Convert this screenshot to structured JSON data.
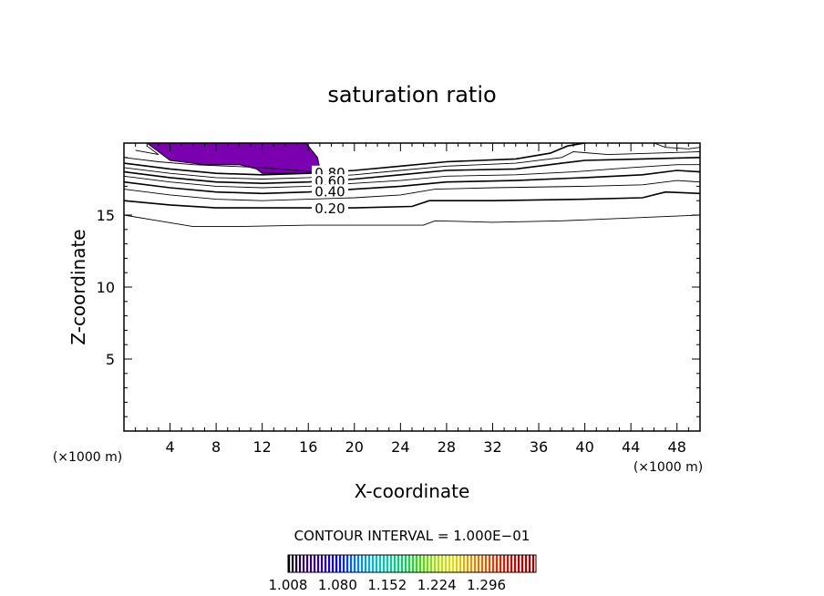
{
  "chart_data": {
    "type": "contour",
    "title": "saturation ratio",
    "xlabel": "X-coordinate",
    "ylabel": "Z-coordinate",
    "x_unit": "(×1000 m)",
    "x_unit_right": "(×1000 m)",
    "xlim": [
      0,
      50
    ],
    "ylim": [
      0,
      20
    ],
    "x_ticks": [
      "4",
      "8",
      "12",
      "16",
      "20",
      "24",
      "28",
      "32",
      "36",
      "40",
      "44",
      "48"
    ],
    "y_ticks": [
      "5",
      "10",
      "15"
    ],
    "contour_interval_text": "CONTOUR INTERVAL = 1.000E−01",
    "contour_labels": [
      "0.80",
      "0.60",
      "0.40",
      "0.20"
    ],
    "contour_lines": [
      {
        "level": 0.1,
        "points": [
          [
            0,
            15.0
          ],
          [
            3,
            14.6
          ],
          [
            6,
            14.2
          ],
          [
            10,
            14.2
          ],
          [
            16,
            14.3
          ],
          [
            22,
            14.3
          ],
          [
            26,
            14.3
          ],
          [
            27,
            14.6
          ],
          [
            32,
            14.5
          ],
          [
            38,
            14.6
          ],
          [
            44,
            14.8
          ],
          [
            50,
            15.0
          ]
        ]
      },
      {
        "level": 0.2,
        "labeled": true,
        "points": [
          [
            0,
            16.0
          ],
          [
            4,
            15.7
          ],
          [
            8,
            15.5
          ],
          [
            12,
            15.5
          ],
          [
            16,
            15.5
          ],
          [
            20,
            15.5
          ],
          [
            25,
            15.6
          ],
          [
            26.5,
            16.0
          ],
          [
            32,
            16.0
          ],
          [
            40,
            16.1
          ],
          [
            45,
            16.2
          ],
          [
            47,
            16.6
          ],
          [
            50,
            16.5
          ]
        ]
      },
      {
        "level": 0.3,
        "points": [
          [
            0,
            16.8
          ],
          [
            4,
            16.4
          ],
          [
            8,
            16.1
          ],
          [
            12,
            16.0
          ],
          [
            16,
            16.1
          ],
          [
            20,
            16.2
          ],
          [
            24,
            16.4
          ],
          [
            27,
            16.8
          ],
          [
            32,
            16.9
          ],
          [
            40,
            17.0
          ],
          [
            45,
            17.1
          ],
          [
            48,
            17.4
          ],
          [
            50,
            17.3
          ]
        ]
      },
      {
        "level": 0.4,
        "labeled": true,
        "points": [
          [
            0,
            17.3
          ],
          [
            4,
            16.9
          ],
          [
            8,
            16.6
          ],
          [
            12,
            16.5
          ],
          [
            16,
            16.6
          ],
          [
            20,
            16.8
          ],
          [
            24,
            17.0
          ],
          [
            28,
            17.3
          ],
          [
            34,
            17.4
          ],
          [
            40,
            17.6
          ],
          [
            45,
            17.8
          ],
          [
            48,
            18.1
          ],
          [
            50,
            18.0
          ]
        ]
      },
      {
        "level": 0.5,
        "points": [
          [
            0,
            17.7
          ],
          [
            4,
            17.3
          ],
          [
            8,
            17.0
          ],
          [
            12,
            16.9
          ],
          [
            16,
            17.0
          ],
          [
            20,
            17.2
          ],
          [
            24,
            17.4
          ],
          [
            28,
            17.7
          ],
          [
            34,
            17.8
          ],
          [
            39,
            18.0
          ],
          [
            44,
            18.3
          ],
          [
            48,
            18.5
          ],
          [
            50,
            18.5
          ]
        ]
      },
      {
        "level": 0.6,
        "labeled": true,
        "points": [
          [
            0,
            18.0
          ],
          [
            4,
            17.6
          ],
          [
            8,
            17.3
          ],
          [
            12,
            17.2
          ],
          [
            16,
            17.3
          ],
          [
            20,
            17.5
          ],
          [
            24,
            17.8
          ],
          [
            28,
            18.1
          ],
          [
            34,
            18.2
          ],
          [
            38,
            18.6
          ],
          [
            40,
            18.8
          ],
          [
            45,
            18.9
          ],
          [
            50,
            19.0
          ]
        ]
      },
      {
        "level": 0.7,
        "points": [
          [
            0,
            18.3
          ],
          [
            4,
            17.9
          ],
          [
            8,
            17.6
          ],
          [
            12,
            17.5
          ],
          [
            16,
            17.6
          ],
          [
            20,
            17.8
          ],
          [
            24,
            18.1
          ],
          [
            28,
            18.4
          ],
          [
            34,
            18.6
          ],
          [
            38,
            19.0
          ],
          [
            39,
            19.4
          ],
          [
            42,
            19.2
          ],
          [
            46,
            19.3
          ],
          [
            50,
            19.4
          ]
        ]
      },
      {
        "level": 0.8,
        "labeled": true,
        "points": [
          [
            0,
            18.6
          ],
          [
            4,
            18.2
          ],
          [
            8,
            17.9
          ],
          [
            12,
            17.8
          ],
          [
            16,
            17.9
          ],
          [
            20,
            18.1
          ],
          [
            24,
            18.4
          ],
          [
            28,
            18.7
          ],
          [
            34,
            18.9
          ],
          [
            37,
            19.3
          ],
          [
            38.5,
            19.8
          ],
          [
            40,
            20.0
          ]
        ]
      },
      {
        "level": 0.9,
        "points": [
          [
            0,
            19.0
          ],
          [
            3,
            18.7
          ],
          [
            6,
            18.5
          ],
          [
            12,
            18.3
          ],
          [
            16.5,
            18.0
          ]
        ]
      },
      {
        "level": 0.95,
        "points": [
          [
            1,
            19.5
          ],
          [
            3,
            19.2
          ],
          [
            2,
            19.8
          ]
        ]
      },
      {
        "level": 0.9,
        "points": [
          [
            46,
            20.0
          ],
          [
            47,
            19.7
          ],
          [
            49,
            19.6
          ],
          [
            50,
            19.7
          ]
        ]
      }
    ],
    "filled_regions": [
      {
        "level": 1.008,
        "color": "#7a00b0",
        "points": [
          [
            2,
            20
          ],
          [
            3,
            19.4
          ],
          [
            4,
            18.8
          ],
          [
            7,
            18.5
          ],
          [
            10,
            18.5
          ],
          [
            11.5,
            18.2
          ],
          [
            12,
            17.9
          ],
          [
            16,
            17.9
          ],
          [
            17,
            18.2
          ],
          [
            16.8,
            19.0
          ],
          [
            15.8,
            20
          ]
        ]
      }
    ],
    "colorbar": {
      "min": 1.008,
      "max": 1.368,
      "tick_labels": [
        "1.008",
        "1.080",
        "1.152",
        "1.224",
        "1.296"
      ],
      "colors": [
        "#000000",
        "#3a006a",
        "#2a00a8",
        "#0000ff",
        "#0070ff",
        "#00b0e0",
        "#00d0a0",
        "#00d060",
        "#30e000",
        "#a0e000",
        "#e0e000",
        "#e0a000",
        "#e06000",
        "#e02000",
        "#c00000",
        "#a00000"
      ]
    }
  }
}
